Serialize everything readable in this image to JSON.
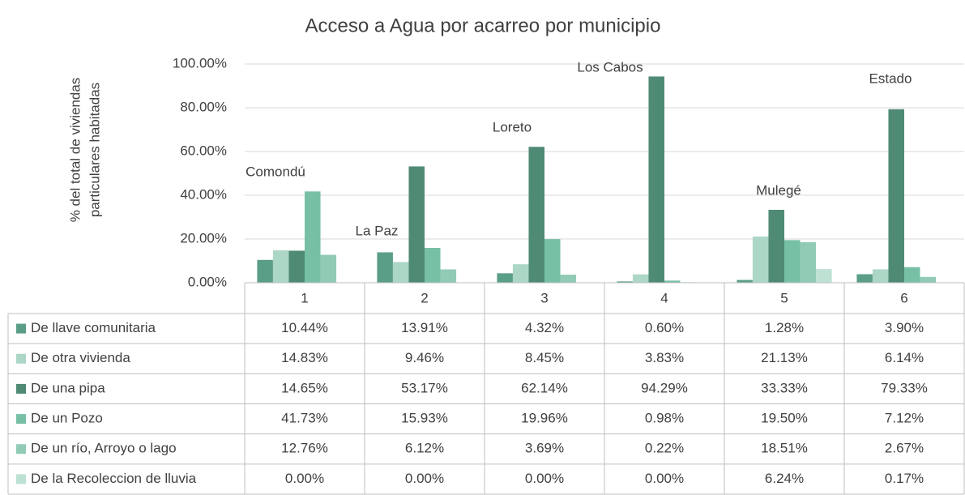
{
  "chart_data": {
    "type": "bar",
    "title": "Acceso a Agua por acarreo por municipio",
    "ylabel": [
      "% del total de  viviendas",
      "particulares habitadas"
    ],
    "categories": [
      "1",
      "2",
      "3",
      "4",
      "5",
      "6"
    ],
    "annotations": [
      "Comondú",
      "La Paz",
      "Loreto",
      "Los Cabos",
      "Mulegé",
      "Estado"
    ],
    "ylim": [
      0,
      100
    ],
    "yticks": [
      {
        "value": 0,
        "label": "0.00%"
      },
      {
        "value": 20,
        "label": "20.00%"
      },
      {
        "value": 40,
        "label": "40.00%"
      },
      {
        "value": 60,
        "label": "60.00%"
      },
      {
        "value": 80,
        "label": "80.00%"
      },
      {
        "value": 100,
        "label": "100.00%"
      }
    ],
    "series": [
      {
        "name": "De llave comunitaria",
        "color": "#5b9e87",
        "values": [
          10.44,
          13.91,
          4.32,
          0.6,
          1.28,
          3.9
        ],
        "value_labels": [
          "10.44%",
          "13.91%",
          "4.32%",
          "0.60%",
          "1.28%",
          "3.90%"
        ]
      },
      {
        "name": "De otra vivienda",
        "color": "#acd6c5",
        "values": [
          14.83,
          9.46,
          8.45,
          3.83,
          21.13,
          6.14
        ],
        "value_labels": [
          "14.83%",
          "9.46%",
          "8.45%",
          "3.83%",
          "21.13%",
          "6.14%"
        ]
      },
      {
        "name": "De una pipa",
        "color": "#4f8a75",
        "values": [
          14.65,
          53.17,
          62.14,
          94.29,
          33.33,
          79.33
        ],
        "value_labels": [
          "14.65%",
          "53.17%",
          "62.14%",
          "94.29%",
          "33.33%",
          "79.33%"
        ]
      },
      {
        "name": "De un Pozo",
        "color": "#77c0a6",
        "values": [
          41.73,
          15.93,
          19.96,
          0.98,
          19.5,
          7.12
        ],
        "value_labels": [
          "41.73%",
          "15.93%",
          "19.96%",
          "0.98%",
          "19.50%",
          "7.12%"
        ]
      },
      {
        "name": "De un río, Arroyo o lago",
        "color": "#92cbb5",
        "values": [
          12.76,
          6.12,
          3.69,
          0.22,
          18.51,
          2.67
        ],
        "value_labels": [
          "12.76%",
          "6.12%",
          "3.69%",
          "0.22%",
          "18.51%",
          "2.67%"
        ]
      },
      {
        "name": "De la Recoleccion de lluvia",
        "color": "#bde1d3",
        "values": [
          0.0,
          0.0,
          0.0,
          0.0,
          6.24,
          0.17
        ],
        "value_labels": [
          "0.00%",
          "0.00%",
          "0.00%",
          "0.00%",
          "6.24%",
          "0.17%"
        ]
      }
    ]
  }
}
